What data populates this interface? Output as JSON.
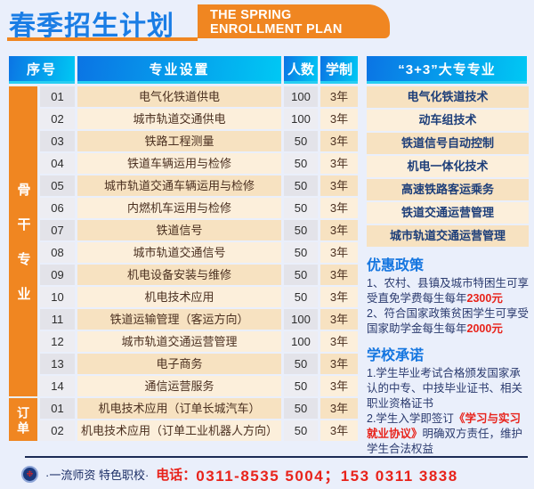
{
  "header": {
    "title_cn": "春季招生计划",
    "title_en_line1": "THE SPRING",
    "title_en_line2": "ENROLLMENT PLAN"
  },
  "table": {
    "columns": [
      "序号",
      "专业设置",
      "人数",
      "学制"
    ],
    "groups": [
      {
        "label": "骨干专业",
        "rows": [
          {
            "no": "01",
            "major": "电气化铁道供电",
            "count": "100",
            "years": "3年"
          },
          {
            "no": "02",
            "major": "城市轨道交通供电",
            "count": "100",
            "years": "3年"
          },
          {
            "no": "03",
            "major": "铁路工程测量",
            "count": "50",
            "years": "3年"
          },
          {
            "no": "04",
            "major": "铁道车辆运用与检修",
            "count": "50",
            "years": "3年"
          },
          {
            "no": "05",
            "major": "城市轨道交通车辆运用与检修",
            "count": "50",
            "years": "3年"
          },
          {
            "no": "06",
            "major": "内燃机车运用与检修",
            "count": "50",
            "years": "3年"
          },
          {
            "no": "07",
            "major": "铁道信号",
            "count": "50",
            "years": "3年"
          },
          {
            "no": "08",
            "major": "城市轨道交通信号",
            "count": "50",
            "years": "3年"
          },
          {
            "no": "09",
            "major": "机电设备安装与维修",
            "count": "50",
            "years": "3年"
          },
          {
            "no": "10",
            "major": "机电技术应用",
            "count": "50",
            "years": "3年"
          },
          {
            "no": "11",
            "major": "铁道运输管理（客运方向）",
            "count": "100",
            "years": "3年"
          },
          {
            "no": "12",
            "major": "城市轨道交通运营管理",
            "count": "100",
            "years": "3年"
          },
          {
            "no": "13",
            "major": "电子商务",
            "count": "50",
            "years": "3年"
          },
          {
            "no": "14",
            "major": "通信运营服务",
            "count": "50",
            "years": "3年"
          }
        ]
      },
      {
        "label": "订单",
        "rows": [
          {
            "no": "01",
            "major": "机电技术应用（订单长城汽车）",
            "count": "50",
            "years": "3年"
          },
          {
            "no": "02",
            "major": "机电技术应用（订单工业机器人方向）",
            "count": "50",
            "years": "3年"
          }
        ]
      }
    ]
  },
  "right_panel": {
    "header": "“3+3”大专专业",
    "majors": [
      "电气化铁道技术",
      "动车组技术",
      "铁道信号自动控制",
      "机电一体化技术",
      "高速铁路客运乘务",
      "铁道交通运营管理",
      "城市轨道交通运营管理"
    ],
    "policy": {
      "title": "优惠政策",
      "lines": [
        {
          "text": "1、农村、县镇及城市特困生可享受直免学费每生每年",
          "em": "2300元"
        },
        {
          "text": "2、符合国家政策贫困学生可享受国家助学金每生每年",
          "em": "2000元"
        }
      ]
    },
    "promise": {
      "title": "学校承诺",
      "items": [
        {
          "pre": "1.学生毕业考试合格颁发国家承认的中专、中技毕业证书、相关职业资格证书",
          "em": "",
          "post": ""
        },
        {
          "pre": "2.学生入学即签订",
          "em": "《学习与实习就业协议》",
          "post": "明确双方责任，维护学生合法权益"
        }
      ]
    }
  },
  "footer": {
    "logo_icon": "school-badge-icon",
    "logo_glyph": "❉",
    "slogan": "·一流师资 特色职校·",
    "phone_label": "电话：",
    "phone_numbers": "0311-8535 5004；153 0311 3838"
  },
  "colors": {
    "accent_orange": "#f08621",
    "header_blue_start": "#0b74e4",
    "header_blue_end": "#00c8f4",
    "cyan_underline": "#27cef2",
    "highlight_red": "#e8231b",
    "title_blue": "#1a7de5"
  }
}
